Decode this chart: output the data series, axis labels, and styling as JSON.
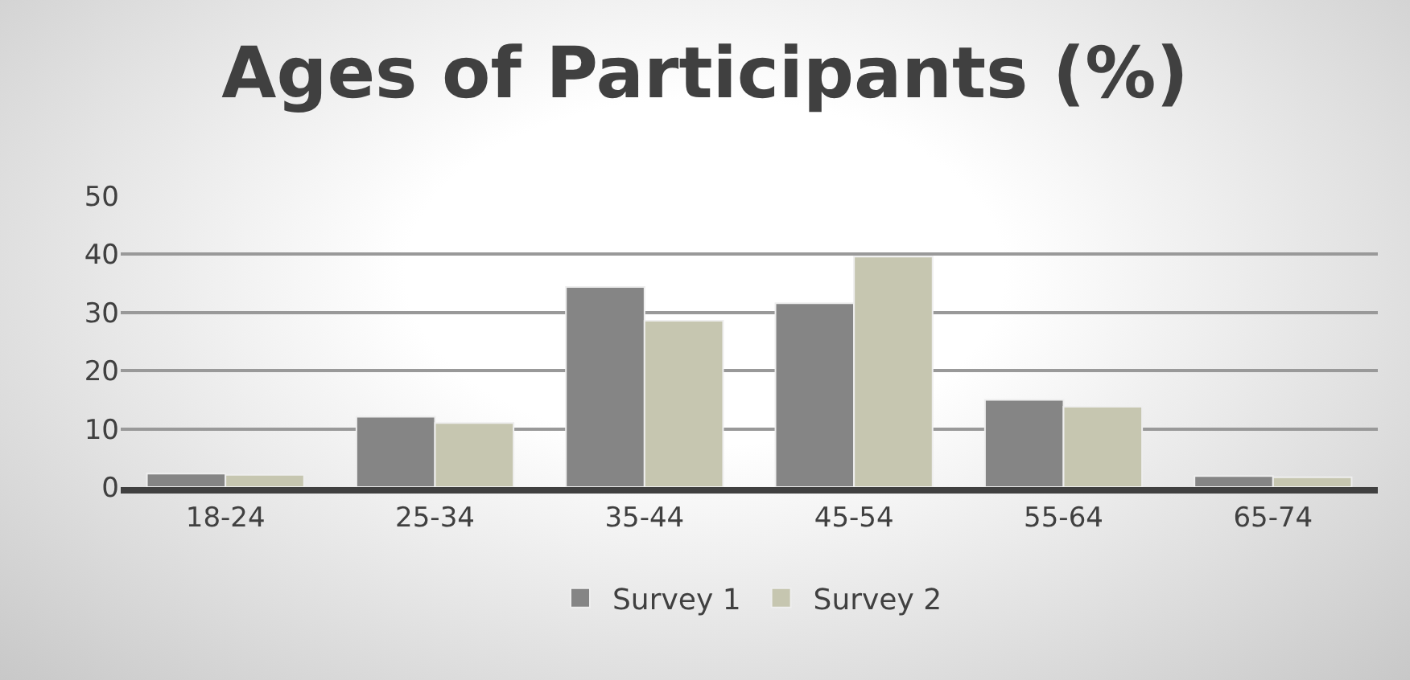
{
  "chart_data": {
    "type": "bar",
    "title": "Ages of Participants (%)",
    "categories": [
      "18-24",
      "25-34",
      "35-44",
      "45-54",
      "55-64",
      "65-74"
    ],
    "series": [
      {
        "name": "Survey 1",
        "color": "#858585",
        "values": [
          2.3,
          12.1,
          34.4,
          31.6,
          15.0,
          1.9
        ]
      },
      {
        "name": "Survey 2",
        "color": "#c6c6b0",
        "values": [
          2.1,
          11.0,
          28.6,
          39.6,
          13.8,
          1.7
        ]
      }
    ],
    "ylim": [
      0,
      50
    ],
    "yticks": [
      0,
      10,
      20,
      30,
      40,
      50
    ],
    "grid": "y",
    "legend": "bottom"
  }
}
